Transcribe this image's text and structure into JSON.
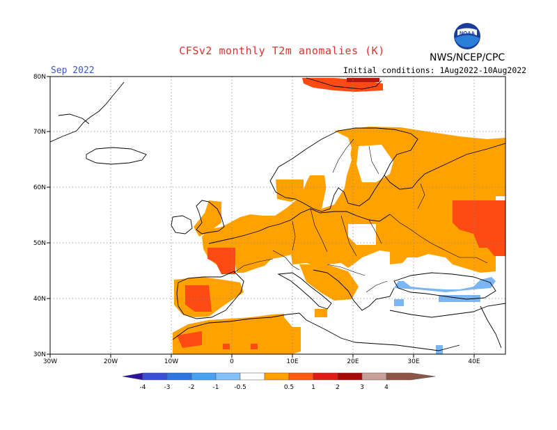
{
  "header": {
    "title": "CFSv2 monthly T2m anomalies (K)",
    "month": "Sep 2022",
    "initial_conditions": "Initial conditions: 1Aug2022-10Aug2022",
    "agency": "NWS/NCEP/CPC",
    "logo_text": "NOAA"
  },
  "map": {
    "lat_labels": [
      "80N",
      "70N",
      "60N",
      "50N",
      "40N",
      "30N"
    ],
    "lon_labels": [
      "30W",
      "20W",
      "10W",
      "0",
      "10E",
      "20E",
      "30E",
      "40E"
    ]
  },
  "legend": {
    "labels": [
      "-4",
      "-3",
      "-2",
      "-1",
      "-0.5",
      "0.5",
      "1",
      "2",
      "3",
      "4"
    ],
    "colors": [
      "#2a14a0",
      "#3b4ed6",
      "#2f74e0",
      "#4aa0f0",
      "#84c0f8",
      "#ffffff",
      "#ffa200",
      "#ff5a14",
      "#e01a14",
      "#a40a0a",
      "#c8a09a",
      "#8c5646"
    ]
  },
  "chart_data": {
    "type": "heatmap",
    "title": "CFSv2 monthly T2m anomalies (K)",
    "lon_range": [
      -30,
      45
    ],
    "lat_range": [
      30,
      80
    ],
    "color_levels": [
      -4,
      -3,
      -2,
      -1,
      -0.5,
      0.5,
      1,
      2,
      3,
      4
    ]
  }
}
